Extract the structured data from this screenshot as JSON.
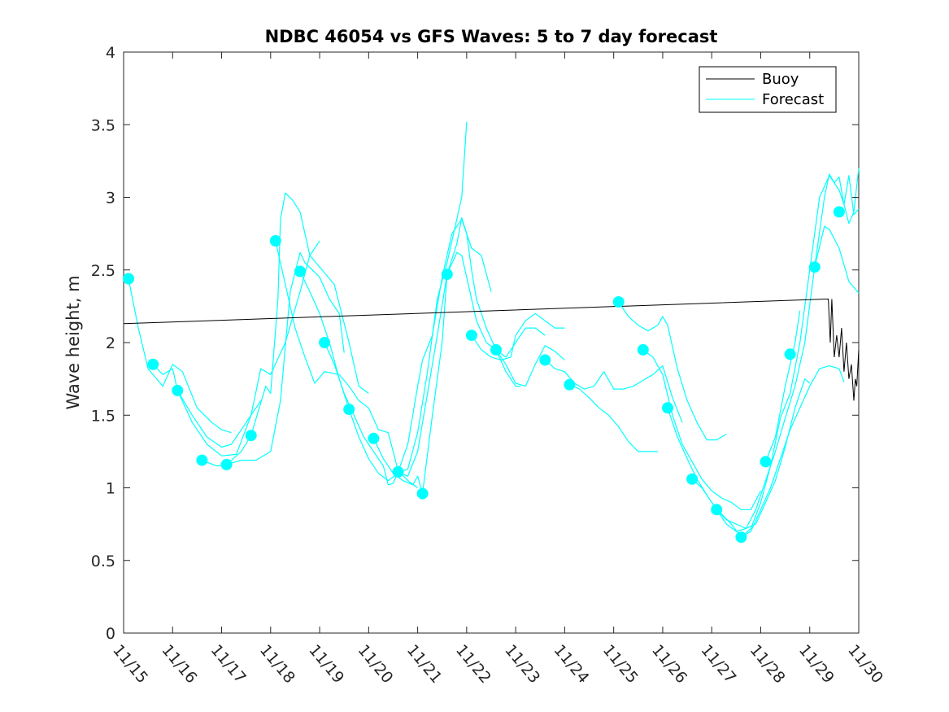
{
  "chart_data": {
    "type": "line",
    "title": "NDBC 46054 vs GFS Waves: 5 to 7 day forecast",
    "xlabel": "",
    "ylabel": "Wave height, m",
    "xlim": [
      0,
      15
    ],
    "ylim": [
      0,
      4
    ],
    "yticks": [
      "0",
      "0.5",
      "1",
      "1.5",
      "2",
      "2.5",
      "3",
      "3.5",
      "4"
    ],
    "xticks": [
      "11/15",
      "11/16",
      "11/17",
      "11/18",
      "11/19",
      "11/20",
      "11/21",
      "11/22",
      "11/23",
      "11/24",
      "11/25",
      "11/26",
      "11/27",
      "11/28",
      "11/29",
      "11/30"
    ],
    "legend": [
      "Buoy",
      "Forecast"
    ],
    "legend_location": "top-right",
    "colors": {
      "buoy": "#000000",
      "forecast": "#00ffff",
      "axis": "#262626"
    },
    "buoy": [
      [
        0,
        2.13
      ],
      [
        14.38,
        2.3
      ],
      [
        14.42,
        2.0
      ],
      [
        14.45,
        2.3
      ],
      [
        14.5,
        1.9
      ],
      [
        14.55,
        2.05
      ],
      [
        14.6,
        1.9
      ],
      [
        14.65,
        2.1
      ],
      [
        14.7,
        1.8
      ],
      [
        14.75,
        2.0
      ],
      [
        14.8,
        1.75
      ],
      [
        14.85,
        1.85
      ],
      [
        14.9,
        1.6
      ],
      [
        14.93,
        1.75
      ],
      [
        14.96,
        1.7
      ],
      [
        15.0,
        1.95
      ]
    ],
    "forecast_markers": [
      [
        0.1,
        2.44
      ],
      [
        0.6,
        1.85
      ],
      [
        1.1,
        1.67
      ],
      [
        1.6,
        1.19
      ],
      [
        2.1,
        1.16
      ],
      [
        2.6,
        1.36
      ],
      [
        3.1,
        2.7
      ],
      [
        3.6,
        2.49
      ],
      [
        4.1,
        2.0
      ],
      [
        4.6,
        1.54
      ],
      [
        5.1,
        1.34
      ],
      [
        5.6,
        1.11
      ],
      [
        6.1,
        0.96
      ],
      [
        6.6,
        2.47
      ],
      [
        7.1,
        2.05
      ],
      [
        7.6,
        1.95
      ],
      [
        8.6,
        1.88
      ],
      [
        9.1,
        1.71
      ],
      [
        10.1,
        2.28
      ],
      [
        10.6,
        1.95
      ],
      [
        11.1,
        1.55
      ],
      [
        11.6,
        1.06
      ],
      [
        12.1,
        0.85
      ],
      [
        12.6,
        0.66
      ],
      [
        13.1,
        1.18
      ],
      [
        13.6,
        1.92
      ],
      [
        14.1,
        2.52
      ],
      [
        14.6,
        2.9
      ]
    ],
    "forecast_series": [
      [
        [
          0.1,
          2.44
        ],
        [
          0.3,
          2.1
        ],
        [
          0.5,
          1.82
        ],
        [
          0.8,
          1.7
        ],
        [
          1.0,
          1.85
        ],
        [
          1.2,
          1.8
        ],
        [
          1.5,
          1.55
        ],
        [
          1.8,
          1.45
        ],
        [
          2.0,
          1.4
        ],
        [
          2.2,
          1.38
        ]
      ],
      [
        [
          0.6,
          1.85
        ],
        [
          0.8,
          1.78
        ],
        [
          1.0,
          1.82
        ],
        [
          1.1,
          1.67
        ],
        [
          1.4,
          1.5
        ],
        [
          1.7,
          1.35
        ],
        [
          2.0,
          1.28
        ],
        [
          2.2,
          1.3
        ],
        [
          2.5,
          1.45
        ],
        [
          2.8,
          1.6
        ]
      ],
      [
        [
          1.1,
          1.67
        ],
        [
          1.4,
          1.45
        ],
        [
          1.7,
          1.3
        ],
        [
          2.0,
          1.22
        ],
        [
          2.3,
          1.23
        ],
        [
          2.6,
          1.5
        ],
        [
          2.8,
          1.82
        ],
        [
          3.0,
          1.78
        ],
        [
          3.3,
          2.0
        ],
        [
          3.6,
          2.35
        ],
        [
          3.8,
          2.6
        ],
        [
          4.0,
          2.7
        ]
      ],
      [
        [
          1.6,
          1.19
        ],
        [
          1.9,
          1.15
        ],
        [
          2.1,
          1.16
        ],
        [
          2.4,
          1.19
        ],
        [
          2.7,
          1.19
        ],
        [
          3.0,
          1.25
        ],
        [
          3.2,
          1.6
        ],
        [
          3.4,
          2.35
        ],
        [
          3.6,
          2.62
        ],
        [
          3.7,
          2.55
        ],
        [
          4.0,
          2.45
        ],
        [
          4.2,
          2.3
        ],
        [
          4.4,
          2.2
        ],
        [
          4.5,
          1.93
        ]
      ],
      [
        [
          2.1,
          1.16
        ],
        [
          2.4,
          1.25
        ],
        [
          2.6,
          1.36
        ],
        [
          2.9,
          1.7
        ],
        [
          3.0,
          1.65
        ],
        [
          3.15,
          2.3
        ],
        [
          3.2,
          2.85
        ],
        [
          3.3,
          3.03
        ],
        [
          3.45,
          2.98
        ],
        [
          3.6,
          2.9
        ],
        [
          3.8,
          2.6
        ],
        [
          4.1,
          2.48
        ],
        [
          4.3,
          2.4
        ],
        [
          4.6,
          2.0
        ],
        [
          4.8,
          1.7
        ],
        [
          5.0,
          1.65
        ]
      ],
      [
        [
          3.1,
          2.7
        ],
        [
          3.3,
          2.4
        ],
        [
          3.5,
          2.1
        ],
        [
          3.7,
          1.9
        ],
        [
          3.9,
          1.72
        ],
        [
          4.1,
          1.8
        ],
        [
          4.4,
          1.78
        ],
        [
          4.6,
          1.7
        ],
        [
          4.8,
          1.6
        ],
        [
          5.0,
          1.55
        ],
        [
          5.2,
          1.4
        ],
        [
          5.4,
          1.38
        ],
        [
          5.6,
          1.12
        ],
        [
          5.8,
          1.05
        ],
        [
          6.0,
          1.0
        ]
      ],
      [
        [
          3.6,
          2.49
        ],
        [
          3.8,
          2.35
        ],
        [
          4.0,
          2.2
        ],
        [
          4.2,
          2.0
        ],
        [
          4.4,
          1.75
        ],
        [
          4.6,
          1.54
        ],
        [
          4.8,
          1.35
        ],
        [
          5.0,
          1.2
        ],
        [
          5.2,
          1.1
        ],
        [
          5.4,
          1.05
        ],
        [
          5.6,
          1.1
        ],
        [
          5.8,
          1.13
        ],
        [
          6.0,
          1.38
        ],
        [
          6.2,
          1.8
        ],
        [
          6.4,
          2.3
        ],
        [
          6.6,
          2.55
        ],
        [
          6.8,
          2.85
        ],
        [
          6.9,
          3.0
        ],
        [
          7.0,
          3.52
        ]
      ],
      [
        [
          4.1,
          2.0
        ],
        [
          4.3,
          1.85
        ],
        [
          4.5,
          1.65
        ],
        [
          4.7,
          1.5
        ],
        [
          4.9,
          1.35
        ],
        [
          5.1,
          1.25
        ],
        [
          5.3,
          1.15
        ],
        [
          5.4,
          1.02
        ],
        [
          5.5,
          1.03
        ],
        [
          5.6,
          1.11
        ],
        [
          5.8,
          1.3
        ],
        [
          6.0,
          1.7
        ],
        [
          6.1,
          1.88
        ],
        [
          6.3,
          2.05
        ],
        [
          6.5,
          2.45
        ],
        [
          6.7,
          2.75
        ],
        [
          6.9,
          2.85
        ],
        [
          7.1,
          2.65
        ],
        [
          7.3,
          2.6
        ],
        [
          7.5,
          2.35
        ]
      ],
      [
        [
          5.1,
          1.34
        ],
        [
          5.3,
          1.2
        ],
        [
          5.5,
          1.1
        ],
        [
          5.7,
          1.05
        ],
        [
          5.9,
          1.02
        ],
        [
          6.0,
          1.08
        ],
        [
          6.1,
          0.96
        ],
        [
          6.3,
          1.5
        ],
        [
          6.5,
          2.0
        ],
        [
          6.6,
          2.47
        ],
        [
          6.8,
          2.68
        ],
        [
          6.9,
          2.86
        ],
        [
          7.0,
          2.75
        ],
        [
          7.1,
          2.5
        ],
        [
          7.2,
          2.3
        ],
        [
          7.4,
          2.1
        ],
        [
          7.6,
          1.95
        ],
        [
          7.8,
          1.8
        ],
        [
          8.0,
          1.7
        ],
        [
          8.1,
          1.7
        ]
      ],
      [
        [
          5.6,
          1.11
        ],
        [
          5.8,
          1.08
        ],
        [
          6.0,
          1.25
        ],
        [
          6.2,
          1.65
        ],
        [
          6.4,
          2.05
        ],
        [
          6.6,
          2.47
        ],
        [
          6.8,
          2.62
        ],
        [
          6.9,
          2.6
        ],
        [
          7.0,
          2.45
        ],
        [
          7.2,
          2.15
        ],
        [
          7.4,
          2.0
        ],
        [
          7.6,
          1.95
        ],
        [
          7.8,
          1.9
        ],
        [
          8.0,
          2.0
        ],
        [
          8.2,
          2.1
        ],
        [
          8.4,
          2.1
        ],
        [
          8.6,
          2.05
        ]
      ],
      [
        [
          7.1,
          2.05
        ],
        [
          7.3,
          1.95
        ],
        [
          7.5,
          1.9
        ],
        [
          7.7,
          1.88
        ],
        [
          7.9,
          1.9
        ],
        [
          8.0,
          2.05
        ],
        [
          8.2,
          2.15
        ],
        [
          8.4,
          2.2
        ],
        [
          8.6,
          2.15
        ],
        [
          8.8,
          2.1
        ],
        [
          9.0,
          2.1
        ]
      ],
      [
        [
          7.6,
          1.95
        ],
        [
          7.8,
          1.85
        ],
        [
          8.0,
          1.72
        ],
        [
          8.2,
          1.7
        ],
        [
          8.4,
          1.85
        ],
        [
          8.6,
          1.98
        ],
        [
          8.8,
          1.94
        ],
        [
          9.0,
          1.88
        ]
      ],
      [
        [
          8.6,
          1.88
        ],
        [
          8.8,
          1.82
        ],
        [
          9.0,
          1.8
        ],
        [
          9.2,
          1.72
        ],
        [
          9.4,
          1.68
        ],
        [
          9.6,
          1.7
        ],
        [
          9.8,
          1.8
        ],
        [
          10.0,
          1.68
        ],
        [
          10.2,
          1.68
        ],
        [
          10.4,
          1.7
        ],
        [
          10.6,
          1.74
        ],
        [
          10.8,
          1.78
        ],
        [
          11.0,
          1.84
        ],
        [
          11.2,
          1.62
        ],
        [
          11.4,
          1.45
        ]
      ],
      [
        [
          9.1,
          1.71
        ],
        [
          9.3,
          1.68
        ],
        [
          9.5,
          1.62
        ],
        [
          9.7,
          1.55
        ],
        [
          9.9,
          1.5
        ],
        [
          10.1,
          1.42
        ],
        [
          10.3,
          1.32
        ],
        [
          10.5,
          1.25
        ],
        [
          10.7,
          1.25
        ],
        [
          10.9,
          1.25
        ]
      ],
      [
        [
          10.1,
          2.28
        ],
        [
          10.3,
          2.18
        ],
        [
          10.5,
          2.12
        ],
        [
          10.7,
          2.08
        ],
        [
          10.9,
          2.12
        ],
        [
          11.0,
          2.18
        ],
        [
          11.1,
          2.12
        ],
        [
          11.3,
          1.82
        ],
        [
          11.5,
          1.6
        ],
        [
          11.7,
          1.45
        ],
        [
          11.9,
          1.33
        ],
        [
          12.1,
          1.33
        ],
        [
          12.3,
          1.37
        ]
      ],
      [
        [
          10.6,
          1.95
        ],
        [
          10.8,
          1.9
        ],
        [
          11.0,
          1.78
        ],
        [
          11.2,
          1.5
        ],
        [
          11.4,
          1.3
        ],
        [
          11.6,
          1.18
        ],
        [
          11.8,
          1.06
        ],
        [
          12.0,
          0.98
        ],
        [
          12.2,
          0.93
        ],
        [
          12.4,
          0.9
        ],
        [
          12.6,
          0.85
        ],
        [
          12.8,
          0.85
        ],
        [
          13.0,
          0.98
        ]
      ],
      [
        [
          11.1,
          1.55
        ],
        [
          11.3,
          1.35
        ],
        [
          11.5,
          1.2
        ],
        [
          11.7,
          1.06
        ],
        [
          11.9,
          0.95
        ],
        [
          12.1,
          0.85
        ],
        [
          12.3,
          0.78
        ],
        [
          12.5,
          0.75
        ],
        [
          12.7,
          0.72
        ],
        [
          12.9,
          0.75
        ],
        [
          13.1,
          0.9
        ],
        [
          13.3,
          1.05
        ],
        [
          13.5,
          1.28
        ],
        [
          13.7,
          1.55
        ],
        [
          13.9,
          1.75
        ],
        [
          14.0,
          1.72
        ]
      ],
      [
        [
          11.6,
          1.06
        ],
        [
          11.8,
          1.0
        ],
        [
          12.0,
          0.9
        ],
        [
          12.2,
          0.82
        ],
        [
          12.4,
          0.75
        ],
        [
          12.6,
          0.66
        ],
        [
          12.8,
          0.7
        ],
        [
          13.0,
          0.85
        ],
        [
          13.2,
          1.0
        ],
        [
          13.4,
          1.2
        ],
        [
          13.6,
          1.4
        ],
        [
          13.8,
          1.55
        ],
        [
          14.0,
          1.7
        ],
        [
          14.2,
          1.82
        ],
        [
          14.4,
          1.84
        ],
        [
          14.6,
          1.82
        ],
        [
          14.7,
          1.73
        ]
      ],
      [
        [
          12.1,
          0.85
        ],
        [
          12.3,
          0.75
        ],
        [
          12.5,
          0.7
        ],
        [
          12.7,
          0.72
        ],
        [
          12.9,
          0.85
        ],
        [
          13.1,
          1.05
        ],
        [
          13.3,
          1.25
        ],
        [
          13.5,
          1.48
        ],
        [
          13.7,
          1.7
        ],
        [
          13.9,
          2.0
        ],
        [
          14.1,
          2.52
        ],
        [
          14.3,
          2.8
        ],
        [
          14.4,
          2.78
        ],
        [
          14.6,
          2.65
        ],
        [
          14.8,
          2.42
        ],
        [
          15.0,
          2.34
        ]
      ],
      [
        [
          12.6,
          0.66
        ],
        [
          12.8,
          0.72
        ],
        [
          13.0,
          0.9
        ],
        [
          13.2,
          1.15
        ],
        [
          13.4,
          1.48
        ],
        [
          13.6,
          1.65
        ],
        [
          13.8,
          2.0
        ],
        [
          14.0,
          2.5
        ],
        [
          14.2,
          3.0
        ],
        [
          14.4,
          3.15
        ],
        [
          14.5,
          3.1
        ],
        [
          14.6,
          3.05
        ],
        [
          14.7,
          2.95
        ],
        [
          14.8,
          3.15
        ],
        [
          14.9,
          2.88
        ],
        [
          15.0,
          2.92
        ]
      ],
      [
        [
          13.1,
          1.18
        ],
        [
          13.3,
          1.35
        ],
        [
          13.5,
          1.7
        ],
        [
          13.7,
          2.0
        ],
        [
          13.8,
          2.22
        ]
      ],
      [
        [
          14.1,
          2.52
        ],
        [
          14.3,
          3.0
        ],
        [
          14.4,
          3.16
        ],
        [
          14.5,
          3.1
        ],
        [
          14.6,
          3.14
        ],
        [
          14.7,
          2.95
        ],
        [
          14.8,
          2.82
        ],
        [
          14.9,
          2.9
        ],
        [
          15.0,
          3.2
        ]
      ]
    ]
  }
}
